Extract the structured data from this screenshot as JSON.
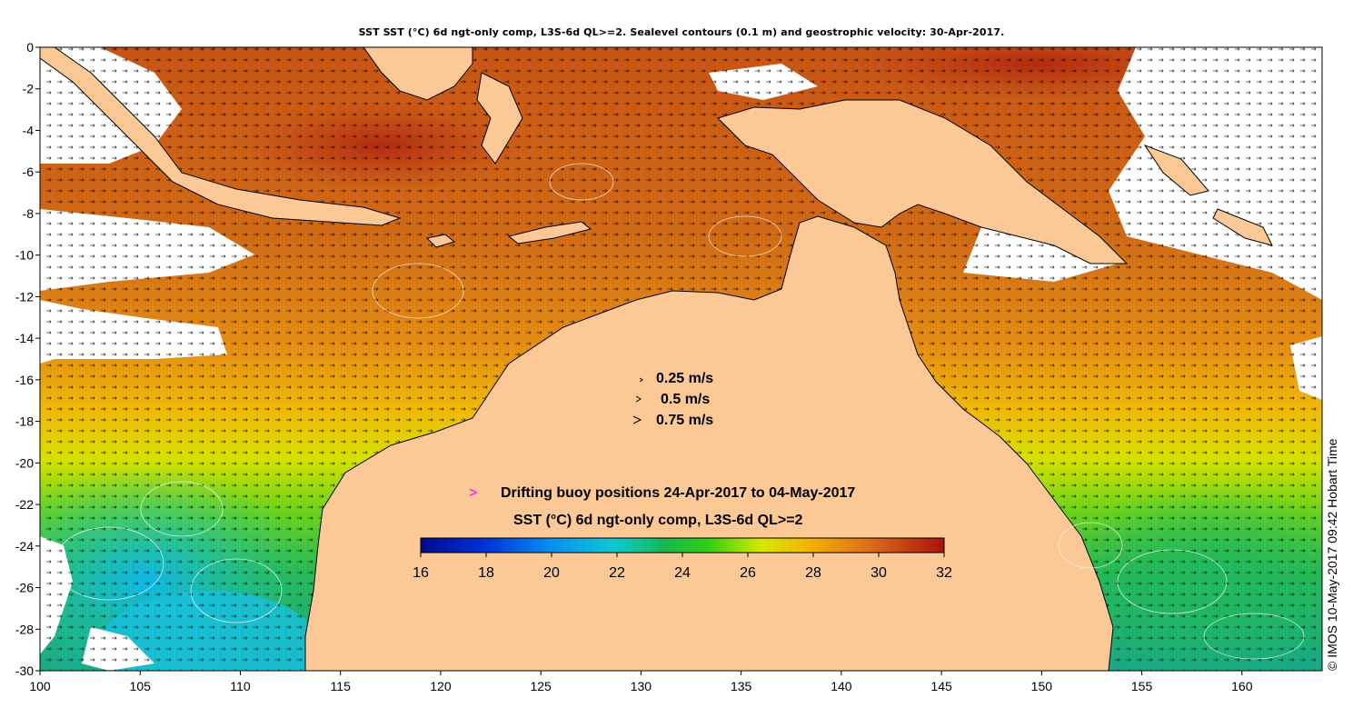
{
  "header": {
    "title": "SST SST (°C) 6d ngt-only comp, L3S-6d QL>=2. Sealevel contours (0.1 m) and geostrophic velocity: 30-Apr-2017."
  },
  "map": {
    "lon_range": [
      100,
      164
    ],
    "lat_range": [
      -30,
      0
    ],
    "lon_ticks": [
      "100",
      "105",
      "110",
      "115",
      "120",
      "125",
      "130",
      "135",
      "140",
      "145",
      "150",
      "155",
      "160"
    ],
    "lat_ticks": [
      "0",
      "-2",
      "-4",
      "-6",
      "-8",
      "-10",
      "-12",
      "-14",
      "-16",
      "-18",
      "-20",
      "-22",
      "-24",
      "-26",
      "-28",
      "-30"
    ],
    "colors": {
      "land": "#fcc896",
      "nodata": "#ffffff",
      "warm": "#cc5a14",
      "hot": "#b23210",
      "mid": "#e88a1a",
      "yellow": "#e8d400",
      "green": "#3cc820",
      "cyan": "#16b8e8"
    }
  },
  "velocity_legend": {
    "items": [
      {
        "label": "0.25 m/s"
      },
      {
        "label": "0.5 m/s"
      },
      {
        "label": "0.75 m/s"
      }
    ]
  },
  "buoy_legend": {
    "marker": ">",
    "label": "Drifting buoy positions 24-Apr-2017 to 04-May-2017",
    "marker_color": "#ff00ff"
  },
  "colorbar": {
    "title": "SST (°C) 6d ngt-only comp, L3S-6d QL>=2",
    "ticks": [
      "16",
      "18",
      "20",
      "22",
      "24",
      "26",
      "28",
      "30",
      "32"
    ],
    "min": 16,
    "max": 32
  },
  "credit": "© IMOS 10-May-2017 09:42 Hobart Time"
}
